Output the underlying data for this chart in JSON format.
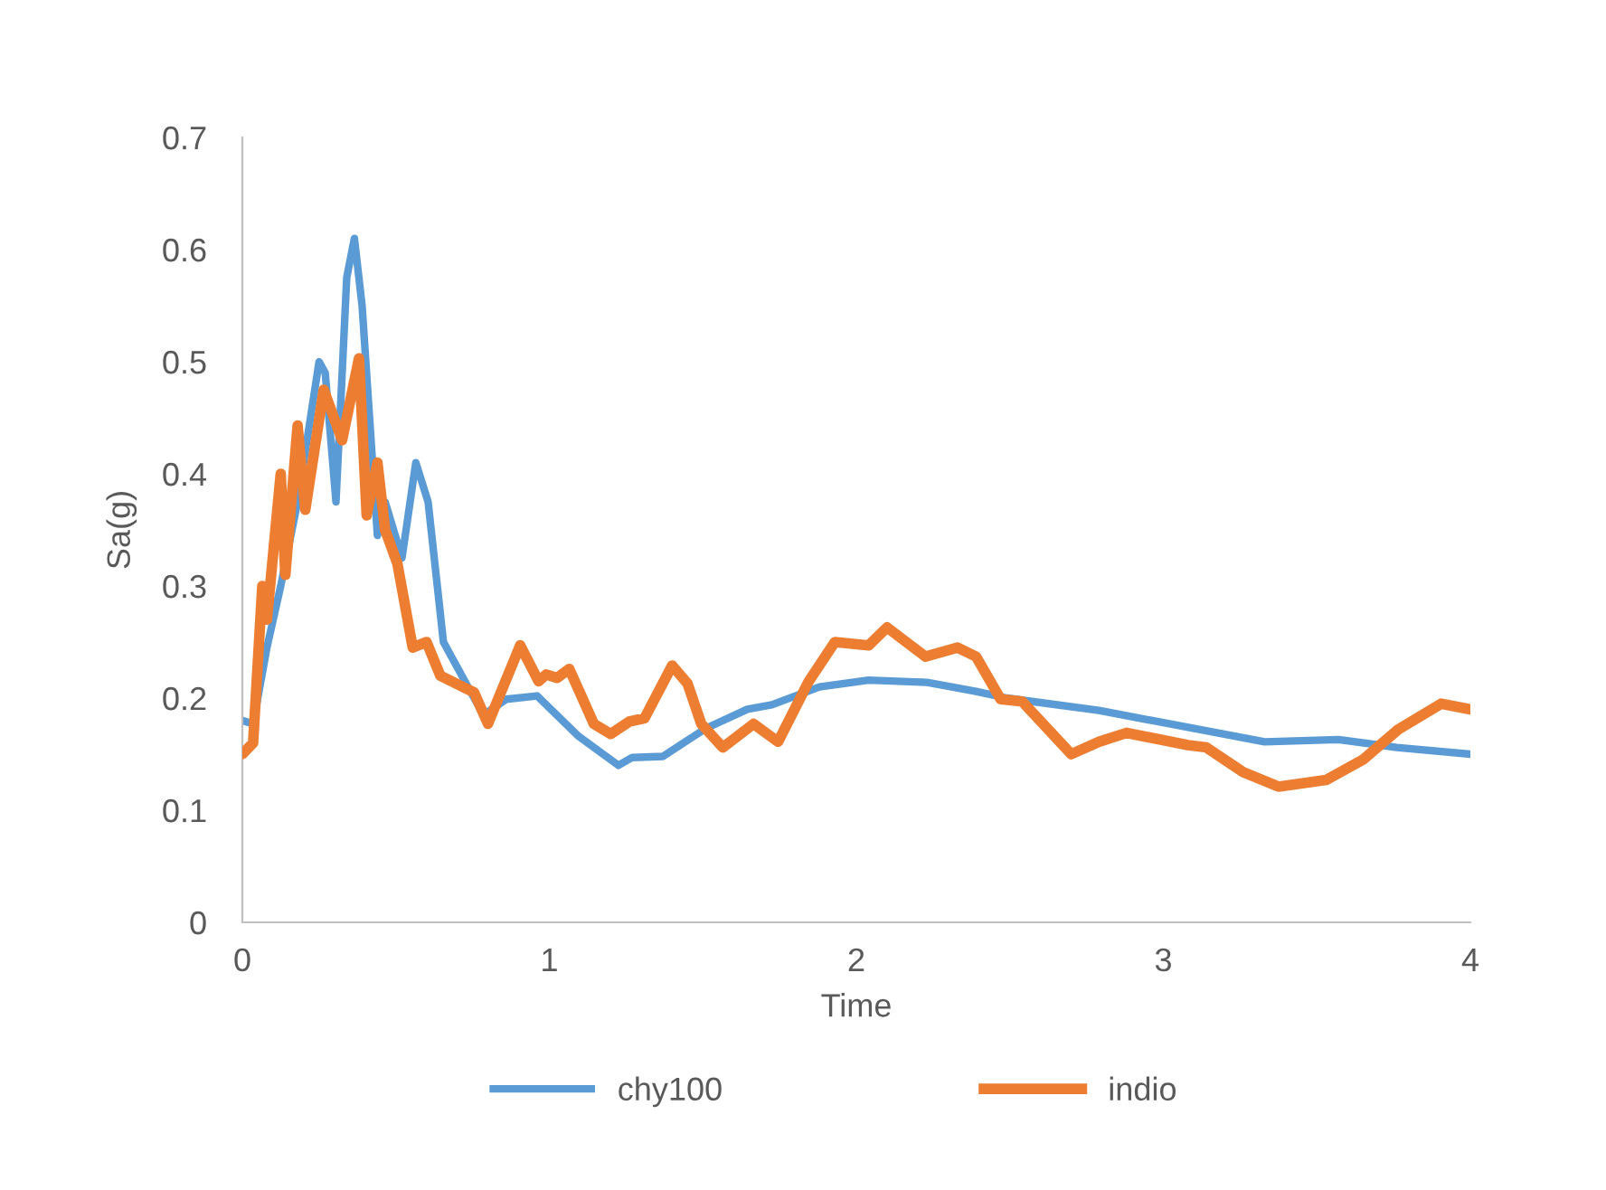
{
  "chart_data": {
    "type": "line",
    "xlabel": "Time",
    "ylabel": "Sa(g)",
    "xlim": [
      0,
      4
    ],
    "xticks": [
      0,
      1,
      2,
      3,
      4
    ],
    "ylim": [
      0,
      0.7
    ],
    "yticks": [
      0,
      0.1,
      0.2,
      0.3,
      0.4,
      0.5,
      0.6,
      0.7
    ],
    "grid": false,
    "legend": "bottom",
    "marker": "none",
    "line_style": "solid",
    "series": [
      {
        "name": "chy100",
        "color": "#5b9bd5",
        "x": [
          0,
          0.035,
          0.08,
          0.125,
          0.18,
          0.25,
          0.27,
          0.305,
          0.34,
          0.365,
          0.39,
          0.44,
          0.465,
          0.52,
          0.565,
          0.605,
          0.655,
          0.725,
          0.785,
          0.86,
          0.96,
          1.095,
          1.225,
          1.27,
          1.37,
          1.51,
          1.645,
          1.725,
          1.88,
          2.04,
          2.23,
          2.39,
          2.49,
          2.79,
          3.33,
          3.57,
          3.76,
          4.0
        ],
        "values": [
          0.18,
          0.177,
          0.245,
          0.3,
          0.375,
          0.5,
          0.49,
          0.375,
          0.575,
          0.61,
          0.55,
          0.345,
          0.375,
          0.325,
          0.41,
          0.375,
          0.25,
          0.215,
          0.185,
          0.199,
          0.202,
          0.166,
          0.14,
          0.147,
          0.148,
          0.173,
          0.19,
          0.194,
          0.21,
          0.216,
          0.214,
          0.206,
          0.2,
          0.189,
          0.161,
          0.163,
          0.156,
          0.15
        ]
      },
      {
        "name": "indio",
        "color": "#ed7d31",
        "x": [
          0,
          0.035,
          0.065,
          0.08,
          0.125,
          0.14,
          0.18,
          0.205,
          0.265,
          0.325,
          0.38,
          0.405,
          0.44,
          0.465,
          0.505,
          0.555,
          0.6,
          0.645,
          0.755,
          0.8,
          0.905,
          0.965,
          0.99,
          1.025,
          1.065,
          1.145,
          1.2,
          1.26,
          1.31,
          1.4,
          1.45,
          1.495,
          1.565,
          1.665,
          1.745,
          1.845,
          1.93,
          2.04,
          2.1,
          2.225,
          2.33,
          2.39,
          2.47,
          2.54,
          2.7,
          2.79,
          2.88,
          3.08,
          3.14,
          3.26,
          3.375,
          3.53,
          3.65,
          3.765,
          3.905,
          4.0
        ],
        "values": [
          0.15,
          0.16,
          0.3,
          0.27,
          0.4,
          0.31,
          0.443,
          0.368,
          0.475,
          0.43,
          0.503,
          0.363,
          0.41,
          0.35,
          0.32,
          0.245,
          0.25,
          0.22,
          0.205,
          0.177,
          0.247,
          0.215,
          0.221,
          0.218,
          0.226,
          0.177,
          0.168,
          0.179,
          0.182,
          0.229,
          0.213,
          0.177,
          0.156,
          0.177,
          0.161,
          0.215,
          0.25,
          0.247,
          0.263,
          0.237,
          0.245,
          0.237,
          0.199,
          0.197,
          0.15,
          0.161,
          0.169,
          0.158,
          0.156,
          0.134,
          0.121,
          0.127,
          0.145,
          0.172,
          0.195,
          0.19
        ]
      }
    ]
  }
}
